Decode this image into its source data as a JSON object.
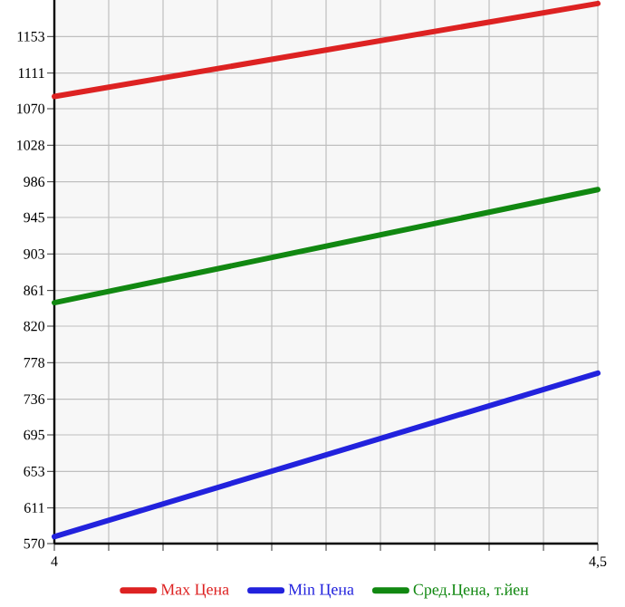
{
  "chart_data": {
    "type": "line",
    "x": [
      4,
      4.5
    ],
    "series": [
      {
        "name": "Max Цена",
        "color": "#dd2222",
        "values": [
          1084,
          1191
        ]
      },
      {
        "name": "Min Цена",
        "color": "#2222dd",
        "values": [
          578,
          766
        ]
      },
      {
        "name": "Сред.Цена, т.йен",
        "color": "#118811",
        "values": [
          847,
          977
        ]
      }
    ],
    "xlim": [
      4,
      4.5
    ],
    "xticks": [
      4,
      {
        "value": 4.05,
        "label": null
      },
      {
        "value": 4.1,
        "label": null
      },
      {
        "value": 4.15,
        "label": null
      },
      {
        "value": 4.2,
        "label": null
      },
      {
        "value": 4.25,
        "label": null
      },
      {
        "value": 4.3,
        "label": null
      },
      {
        "value": 4.35,
        "label": null
      },
      {
        "value": 4.4,
        "label": null
      },
      {
        "value": 4.45,
        "label": null
      },
      {
        "value": 4.5,
        "label": "4,5"
      }
    ],
    "ylim": [
      570,
      1195
    ],
    "yticks": [
      570,
      611,
      653,
      695,
      736,
      778,
      820,
      861,
      903,
      945,
      986,
      1028,
      1070,
      1111,
      1153
    ],
    "grid": true,
    "legend": "bottom",
    "marker": "none",
    "line_style": "solid"
  }
}
